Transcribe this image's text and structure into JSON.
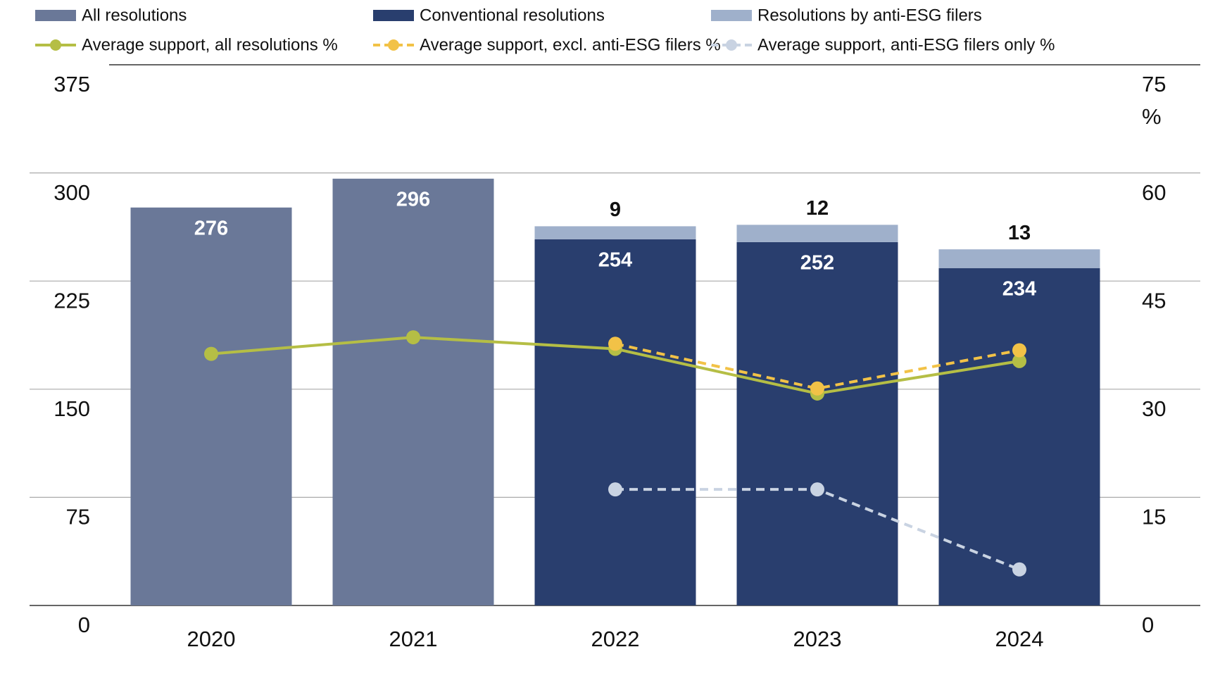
{
  "chart_data": {
    "type": "bar",
    "categories": [
      "2020",
      "2021",
      "2022",
      "2023",
      "2024"
    ],
    "series": [
      {
        "name": "All resolutions",
        "type": "bar",
        "color": "#6a7898",
        "values": [
          276,
          296,
          null,
          null,
          null
        ]
      },
      {
        "name": "Conventional resolutions",
        "type": "bar",
        "color": "#293e6e",
        "values": [
          null,
          null,
          254,
          252,
          234
        ]
      },
      {
        "name": "Resolutions by anti-ESG filers",
        "type": "bar",
        "color": "#9fb0cb",
        "values": [
          null,
          null,
          9,
          12,
          13
        ]
      },
      {
        "name": "Average support, all resolutions %",
        "type": "line",
        "axis": "y2",
        "color": "#b5be45",
        "dashed": false,
        "values": [
          34.9,
          37.2,
          35.6,
          29.4,
          33.9
        ]
      },
      {
        "name": "Average support, excl. anti-ESG filers %",
        "type": "line",
        "axis": "y2",
        "color": "#f2c247",
        "dashed": true,
        "values": [
          null,
          null,
          36.3,
          30.1,
          35.4
        ]
      },
      {
        "name": "Average support, anti-ESG filers only %",
        "type": "line",
        "axis": "y2",
        "color": "#c9d3e2",
        "dashed": true,
        "values": [
          null,
          null,
          16.1,
          16.1,
          5.0
        ]
      }
    ],
    "stacked": true,
    "ylim": [
      0,
      375
    ],
    "yticks": [
      0,
      75,
      150,
      225,
      300,
      375
    ],
    "y2lim": [
      0,
      75
    ],
    "y2ticks": [
      0,
      15,
      30,
      45,
      60,
      75
    ],
    "y2label": "%",
    "grid": true,
    "legend": "top"
  }
}
